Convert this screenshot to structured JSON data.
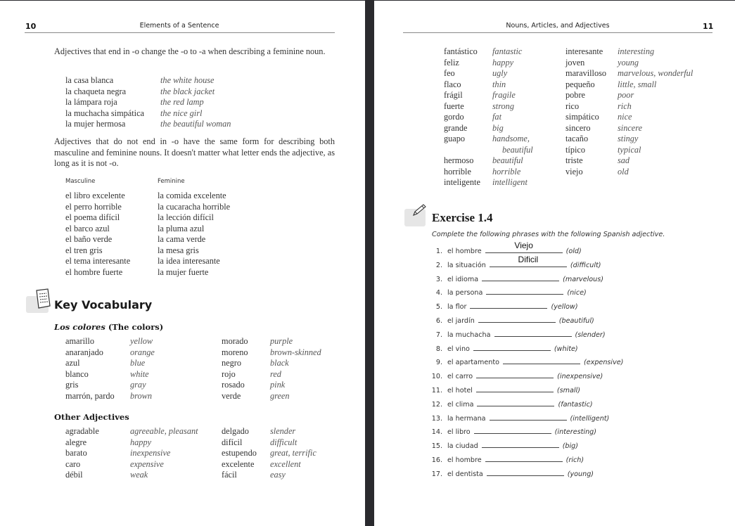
{
  "left_page": {
    "page_number": "10",
    "running_title": "Elements of a Sentence",
    "para1": "Adjectives that end in -o change the -o to -a when describing a feminine noun.",
    "feminine_examples": [
      [
        "la casa blanca",
        "the white house"
      ],
      [
        "la chaqueta negra",
        "the black jacket"
      ],
      [
        "la lámpara roja",
        "the red lamp"
      ],
      [
        "la muchacha simpática",
        "the nice girl"
      ],
      [
        "la mujer hermosa",
        "the beautiful woman"
      ]
    ],
    "para2": "Adjectives that do not end in -o have the same form for describing both masculine and feminine nouns. It doesn't matter what letter ends the adjective, as long as it is not -o.",
    "table_headers": {
      "masculine": "Masculine",
      "feminine": "Feminine"
    },
    "gender_examples": [
      [
        "el libro excelente",
        "la comida excelente"
      ],
      [
        "el perro horrible",
        "la cucaracha horrible"
      ],
      [
        "el poema difícil",
        "la lección difícil"
      ],
      [
        "el barco azul",
        "la pluma azul"
      ],
      [
        "el baño verde",
        "la cama verde"
      ],
      [
        "el tren gris",
        "la mesa gris"
      ],
      [
        "el tema interesante",
        "la idea interesante"
      ],
      [
        "el hombre fuerte",
        "la mujer fuerte"
      ]
    ],
    "key_vocab_title": "Key Vocabulary",
    "key_vocab_icon": "notepad-icon",
    "colors_heading_es": "Los colores",
    "colors_heading_en": "(The colors)",
    "colors": [
      [
        "amarillo",
        "yellow",
        "morado",
        "purple"
      ],
      [
        "anaranjado",
        "orange",
        "moreno",
        "brown-skinned"
      ],
      [
        "azul",
        "blue",
        "negro",
        "black"
      ],
      [
        "blanco",
        "white",
        "rojo",
        "red"
      ],
      [
        "gris",
        "gray",
        "rosado",
        "pink"
      ],
      [
        "marrón, pardo",
        "brown",
        "verde",
        "green"
      ]
    ],
    "other_heading": "Other Adjectives",
    "other": [
      [
        "agradable",
        "agreeable, pleasant",
        "delgado",
        "slender"
      ],
      [
        "alegre",
        "happy",
        "difícil",
        "difficult"
      ],
      [
        "barato",
        "inexpensive",
        "estupendo",
        "great, terrific"
      ],
      [
        "caro",
        "expensive",
        "excelente",
        "excellent"
      ],
      [
        "débil",
        "weak",
        "fácil",
        "easy"
      ]
    ]
  },
  "right_page": {
    "page_number": "11",
    "running_title": "Nouns, Articles, and Adjectives",
    "vocab": [
      [
        "fantástico",
        "fantastic",
        "interesante",
        "interesting"
      ],
      [
        "feliz",
        "happy",
        "joven",
        "young"
      ],
      [
        "feo",
        "ugly",
        "maravilloso",
        "marvelous, wonderful"
      ],
      [
        "flaco",
        "thin",
        "pequeño",
        "little, small"
      ],
      [
        "frágil",
        "fragile",
        "pobre",
        "poor"
      ],
      [
        "fuerte",
        "strong",
        "rico",
        "rich"
      ],
      [
        "gordo",
        "fat",
        "simpático",
        "nice"
      ],
      [
        "grande",
        "big",
        "sincero",
        "sincere"
      ],
      [
        "guapo",
        "handsome,",
        "tacaño",
        "stingy"
      ],
      [
        "",
        "beautiful",
        "típico",
        "typical"
      ],
      [
        "hermoso",
        "beautiful",
        "triste",
        "sad"
      ],
      [
        "horrible",
        "horrible",
        "viejo",
        "old"
      ],
      [
        "inteligente",
        "intelligent",
        "",
        ""
      ]
    ],
    "exercise": {
      "icon": "pencil-icon",
      "title": "Exercise 1.4",
      "instruction": "Complete the following phrases with the following Spanish adjective.",
      "items": [
        {
          "n": "1.",
          "phrase": "el hombre",
          "answer": "Viejo",
          "hint": "(old)"
        },
        {
          "n": "2.",
          "phrase": "la situación",
          "answer": "Dificil",
          "hint": "(difficult)"
        },
        {
          "n": "3.",
          "phrase": "el idioma",
          "answer": "",
          "hint": "(marvelous)"
        },
        {
          "n": "4.",
          "phrase": "la persona",
          "answer": "",
          "hint": "(nice)"
        },
        {
          "n": "5.",
          "phrase": "la flor",
          "answer": "",
          "hint": "(yellow)"
        },
        {
          "n": "6.",
          "phrase": "el jardín",
          "answer": "",
          "hint": "(beautiful)"
        },
        {
          "n": "7.",
          "phrase": "la muchacha",
          "answer": "",
          "hint": "(slender)"
        },
        {
          "n": "8.",
          "phrase": "el vino",
          "answer": "",
          "hint": "(white)"
        },
        {
          "n": "9.",
          "phrase": "el apartamento",
          "answer": "",
          "hint": "(expensive)"
        },
        {
          "n": "10.",
          "phrase": "el carro",
          "answer": "",
          "hint": "(inexpensive)"
        },
        {
          "n": "11.",
          "phrase": "el hotel",
          "answer": "",
          "hint": "(small)"
        },
        {
          "n": "12.",
          "phrase": "el clima",
          "answer": "",
          "hint": "(fantastic)"
        },
        {
          "n": "13.",
          "phrase": "la hermana",
          "answer": "",
          "hint": "(intelligent)"
        },
        {
          "n": "14.",
          "phrase": "el libro",
          "answer": "",
          "hint": "(interesting)"
        },
        {
          "n": "15.",
          "phrase": "la ciudad",
          "answer": "",
          "hint": "(big)"
        },
        {
          "n": "16.",
          "phrase": "el hombre",
          "answer": "",
          "hint": "(rich)"
        },
        {
          "n": "17.",
          "phrase": "el dentista",
          "answer": "",
          "hint": "(young)"
        }
      ]
    }
  }
}
